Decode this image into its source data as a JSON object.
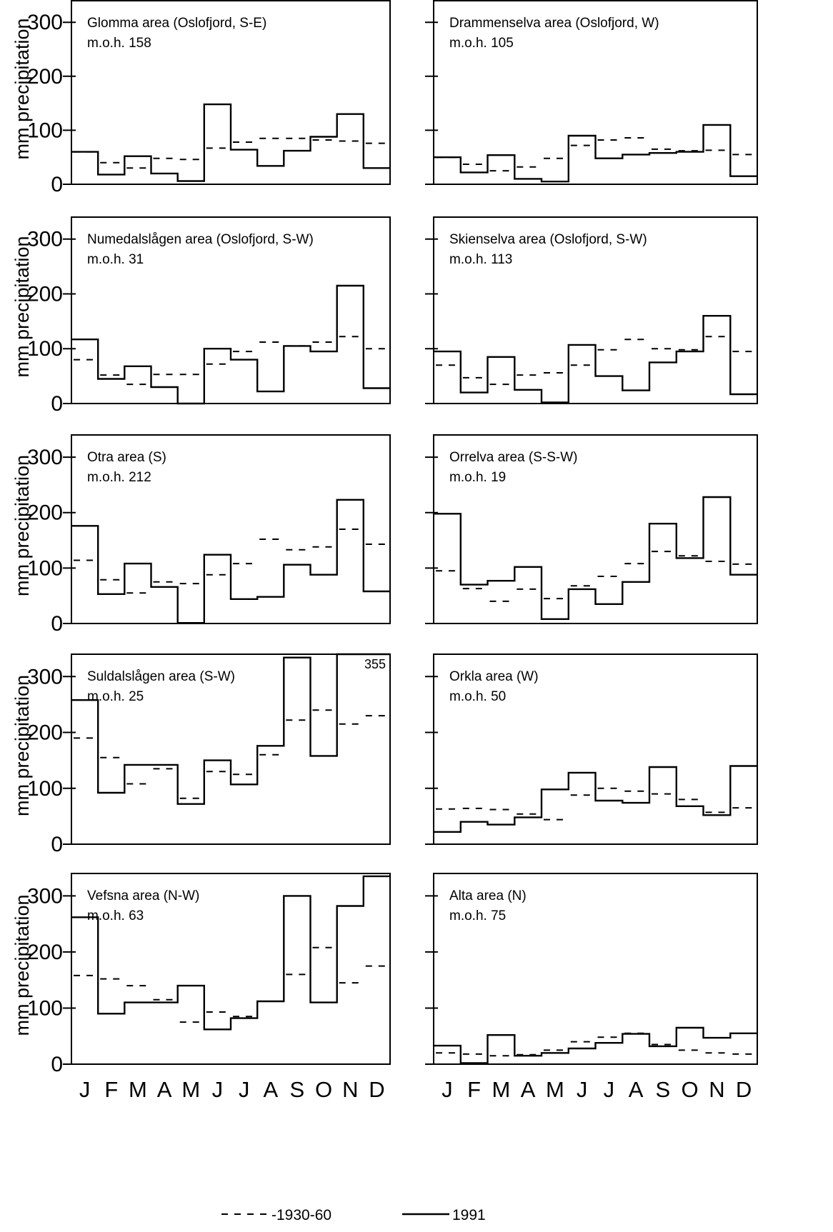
{
  "chart_data": {
    "type": "line",
    "ylabel": "mm precipitation",
    "x_categories": [
      "J",
      "F",
      "M",
      "A",
      "M",
      "J",
      "J",
      "A",
      "S",
      "O",
      "N",
      "D"
    ],
    "ylim": [
      0,
      340
    ],
    "yticks": [
      0,
      100,
      200,
      300
    ],
    "legend": {
      "placement": "bottom",
      "items": [
        {
          "key": "normal",
          "label": "-1930-60",
          "style": "dashed"
        },
        {
          "key": "obs",
          "label": "1991",
          "style": "solid"
        }
      ]
    },
    "panels": [
      {
        "title": "Glomma area  (Oslofjord, S-E)",
        "moh": "m.o.h. 158",
        "normal": [
          60,
          40,
          30,
          48,
          46,
          67,
          78,
          85,
          85,
          82,
          80,
          76
        ],
        "obs": [
          60,
          18,
          52,
          20,
          6,
          148,
          64,
          34,
          62,
          88,
          130,
          30
        ]
      },
      {
        "title": "Drammenselva area  (Oslofjord, W)",
        "moh": "m.o.h. 105",
        "normal": [
          50,
          37,
          25,
          32,
          48,
          72,
          82,
          86,
          65,
          62,
          63,
          55
        ],
        "obs": [
          50,
          22,
          54,
          10,
          5,
          90,
          48,
          55,
          58,
          60,
          110,
          15
        ]
      },
      {
        "title": "Numedalslågen area  (Oslofjord, S-W)",
        "moh": "m.o.h. 31",
        "normal": [
          80,
          52,
          35,
          53,
          53,
          72,
          95,
          112,
          105,
          112,
          122,
          100
        ],
        "obs": [
          117,
          45,
          68,
          30,
          0,
          100,
          80,
          22,
          105,
          95,
          215,
          28
        ]
      },
      {
        "title": "Skienselva area  (Oslofjord, S-W)",
        "moh": "m.o.h. 113",
        "normal": [
          70,
          47,
          35,
          52,
          56,
          70,
          98,
          117,
          100,
          98,
          122,
          95
        ],
        "obs": [
          95,
          20,
          85,
          25,
          2,
          107,
          50,
          24,
          75,
          95,
          160,
          17
        ]
      },
      {
        "title": "Otra area  (S)",
        "moh": "m.o.h. 212",
        "normal": [
          114,
          79,
          55,
          75,
          72,
          88,
          108,
          152,
          133,
          138,
          170,
          143
        ],
        "obs": [
          176,
          53,
          108,
          66,
          1,
          124,
          44,
          48,
          106,
          88,
          223,
          58
        ]
      },
      {
        "title": "Orrelva area  (S-S-W)",
        "moh": "m.o.h. 19",
        "normal": [
          95,
          63,
          40,
          62,
          45,
          68,
          85,
          108,
          130,
          122,
          112,
          107
        ],
        "obs": [
          198,
          70,
          77,
          102,
          8,
          62,
          35,
          75,
          180,
          118,
          228,
          88
        ]
      },
      {
        "title": "Suldalslågen area  (S-W)",
        "moh": "m.o.h. 25",
        "normal": [
          190,
          155,
          108,
          135,
          82,
          130,
          125,
          160,
          222,
          240,
          215,
          230
        ],
        "obs": [
          258,
          92,
          142,
          142,
          72,
          150,
          107,
          176,
          334,
          158,
          340,
          340
        ],
        "annotation": "355"
      },
      {
        "title": "Orkla area  (W)",
        "moh": "m.o.h. 50",
        "normal": [
          63,
          64,
          62,
          54,
          44,
          88,
          100,
          95,
          90,
          80,
          57,
          65
        ],
        "obs": [
          22,
          40,
          35,
          48,
          98,
          128,
          78,
          74,
          138,
          68,
          52,
          140
        ]
      },
      {
        "title": "Vefsna area  (N-W)",
        "moh": "m.o.h. 63",
        "normal": [
          158,
          152,
          140,
          115,
          75,
          93,
          85,
          112,
          160,
          208,
          145,
          175
        ],
        "obs": [
          262,
          90,
          110,
          110,
          140,
          62,
          82,
          112,
          300,
          110,
          282,
          335
        ]
      },
      {
        "title": "Alta area  (N)",
        "moh": "m.o.h. 75",
        "normal": [
          20,
          18,
          15,
          17,
          25,
          40,
          48,
          55,
          35,
          25,
          20,
          18
        ],
        "obs": [
          33,
          2,
          52,
          15,
          20,
          28,
          38,
          54,
          32,
          65,
          47,
          55
        ]
      }
    ]
  }
}
